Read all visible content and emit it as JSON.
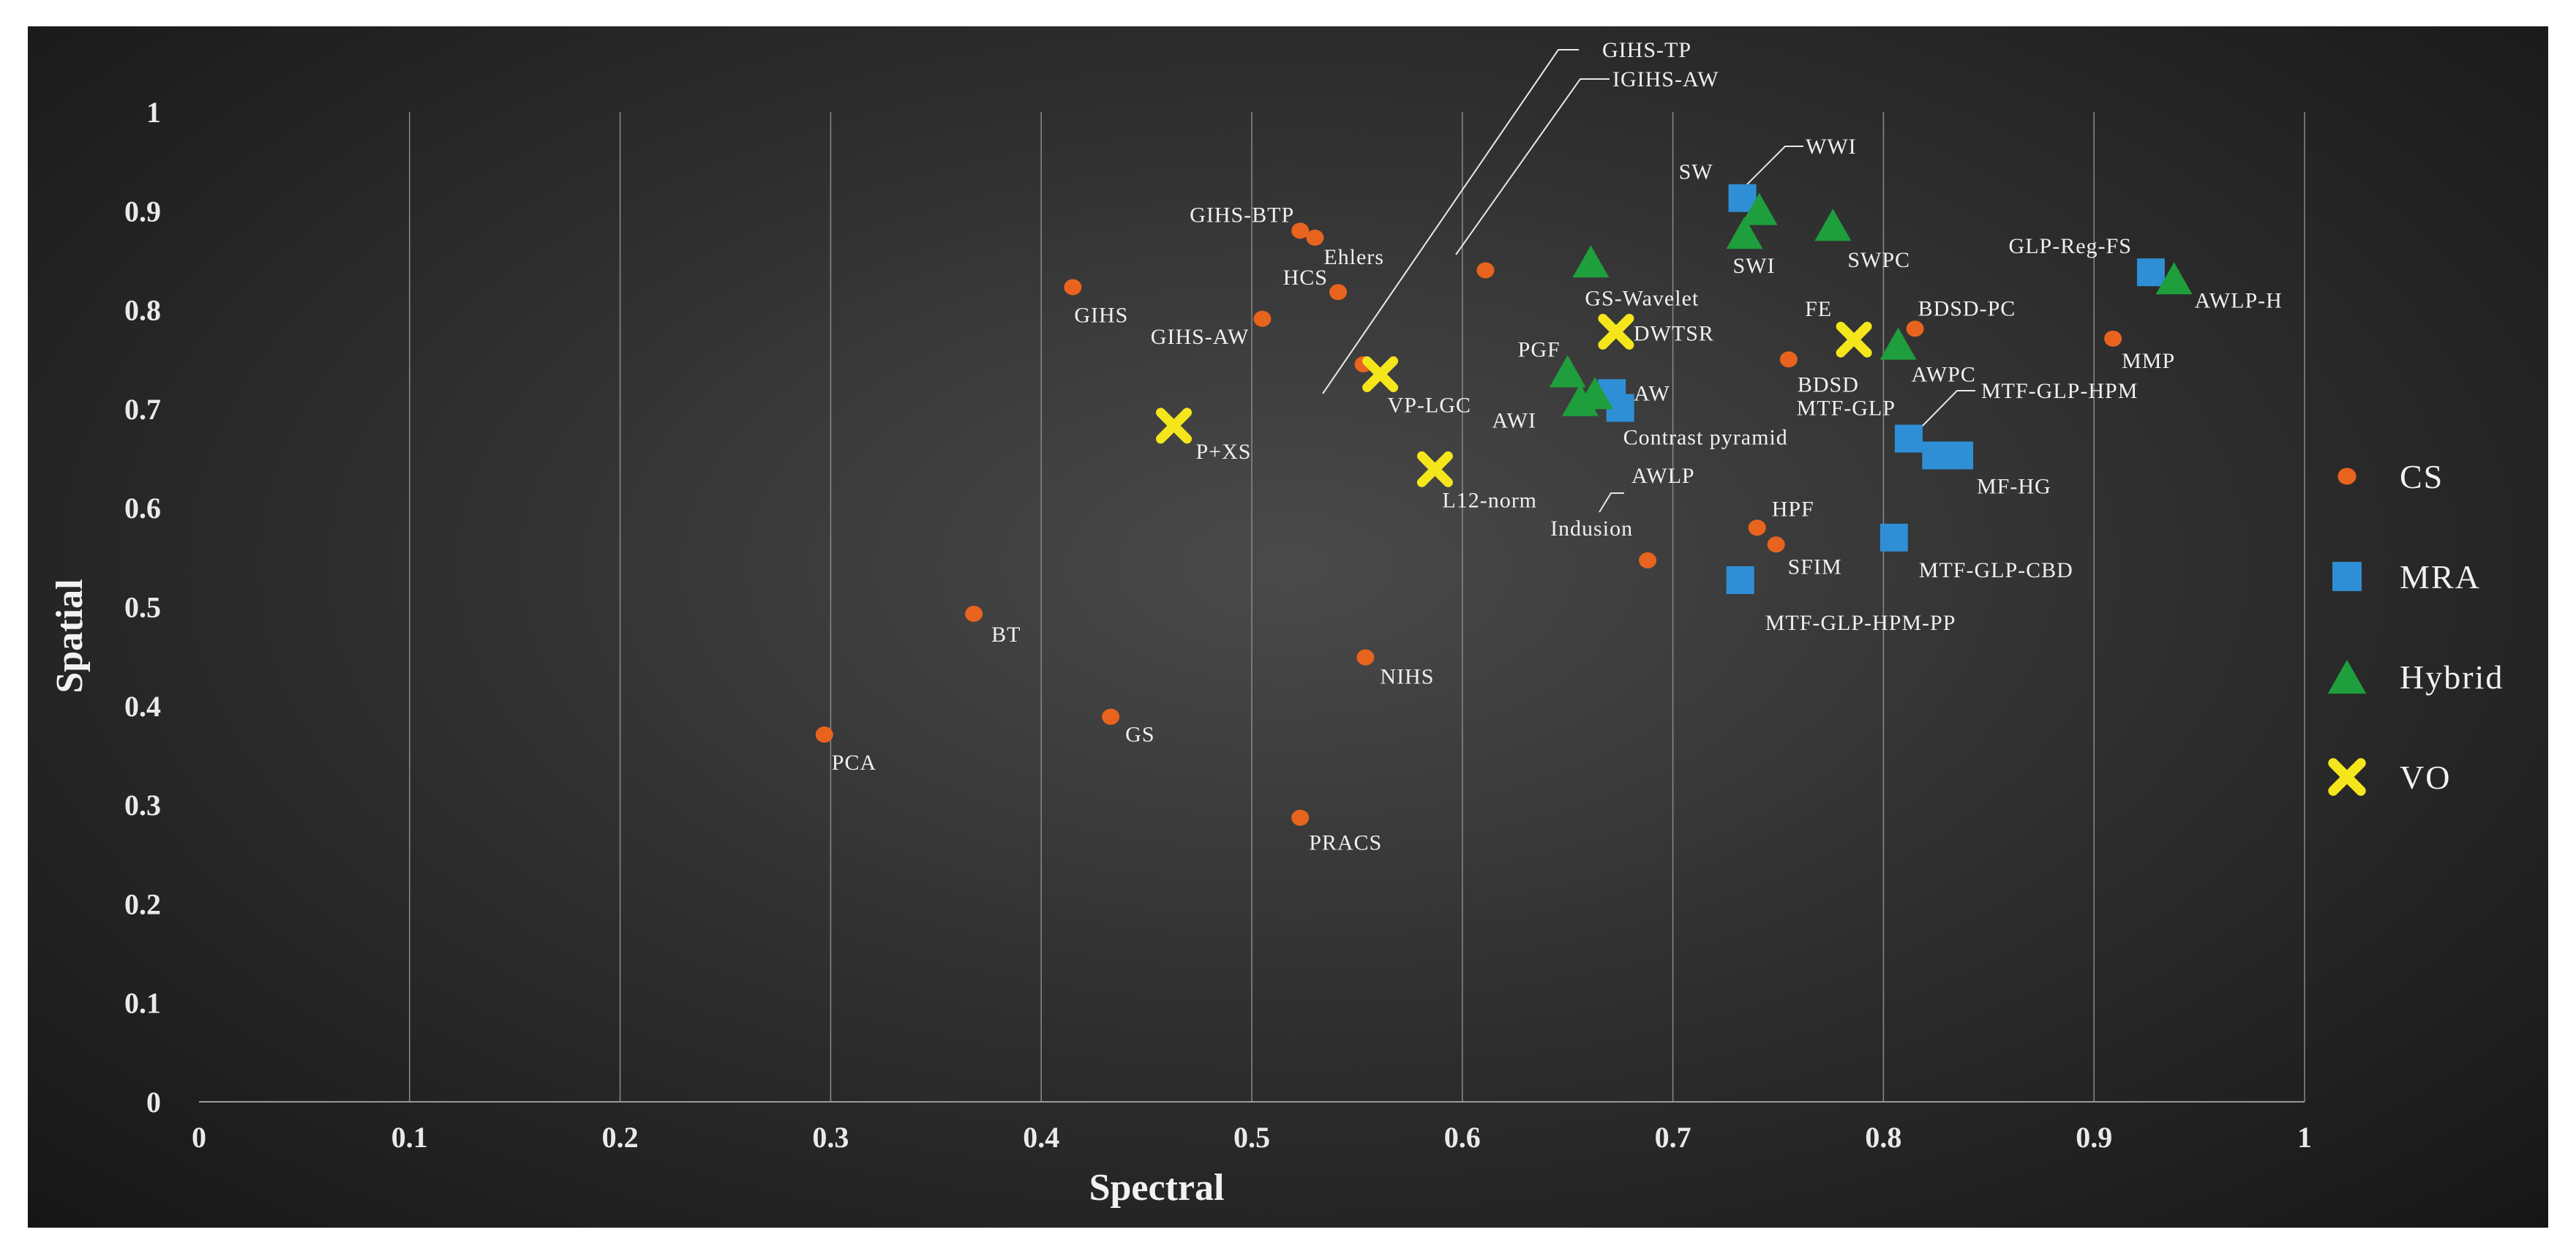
{
  "chart_data": {
    "type": "scatter",
    "title": "",
    "xlabel": "Spectral",
    "ylabel": "Spatial",
    "xlim": [
      0,
      1
    ],
    "ylim": [
      0,
      1
    ],
    "xticks": [
      "0",
      "0.1",
      "0.2",
      "0.3",
      "0.4",
      "0.5",
      "0.6",
      "0.7",
      "0.8",
      "0.9",
      "1"
    ],
    "yticks": [
      "0",
      "0.1",
      "0.2",
      "0.3",
      "0.4",
      "0.5",
      "0.6",
      "0.7",
      "0.8",
      "0.9",
      "1"
    ],
    "grid": "vertical",
    "legend_position": "right",
    "series": [
      {
        "name": "CS",
        "marker": "circle",
        "color": "#e8641e",
        "points": [
          {
            "x": 0.297,
            "y": 0.371,
            "label": "PCA"
          },
          {
            "x": 0.368,
            "y": 0.493,
            "label": "BT"
          },
          {
            "x": 0.433,
            "y": 0.389,
            "label": "GS"
          },
          {
            "x": 0.415,
            "y": 0.823,
            "label": "GIHS"
          },
          {
            "x": 0.505,
            "y": 0.791,
            "label": "GIHS-AW"
          },
          {
            "x": 0.523,
            "y": 0.88,
            "label": "GIHS-BTP"
          },
          {
            "x": 0.53,
            "y": 0.873,
            "label": "Ehlers"
          },
          {
            "x": 0.541,
            "y": 0.818,
            "label": "HCS"
          },
          {
            "x": 0.553,
            "y": 0.745,
            "label": "GIHS-TP"
          },
          {
            "x": 0.611,
            "y": 0.84,
            "label": "IGIHS-AW"
          },
          {
            "x": 0.554,
            "y": 0.449,
            "label": "NIHS"
          },
          {
            "x": 0.523,
            "y": 0.287,
            "label": "PRACS"
          },
          {
            "x": 0.688,
            "y": 0.547,
            "label": "Indusion"
          },
          {
            "x": 0.74,
            "y": 0.58,
            "label": "HPF"
          },
          {
            "x": 0.749,
            "y": 0.563,
            "label": "SFIM"
          },
          {
            "x": 0.755,
            "y": 0.75,
            "label": "BDSD"
          },
          {
            "x": 0.815,
            "y": 0.781,
            "label": "BDSD-PC"
          },
          {
            "x": 0.909,
            "y": 0.771,
            "label": "MMP"
          }
        ]
      },
      {
        "name": "MRA",
        "marker": "square",
        "color": "#2f8fd6",
        "points": [
          {
            "x": 0.733,
            "y": 0.913,
            "label": "SW"
          },
          {
            "x": 0.927,
            "y": 0.838,
            "label": "GLP-Reg-FS"
          },
          {
            "x": 0.671,
            "y": 0.716,
            "label": "AW"
          },
          {
            "x": 0.675,
            "y": 0.701,
            "label": "Contrast pyramid"
          },
          {
            "x": 0.812,
            "y": 0.67,
            "label": "MTF-GLP"
          },
          {
            "x": 0.825,
            "y": 0.653,
            "label": "MTF-GLP-HPM"
          },
          {
            "x": 0.836,
            "y": 0.653,
            "label": "MF-HG"
          },
          {
            "x": 0.805,
            "y": 0.57,
            "label": "MTF-GLP-CBD"
          },
          {
            "x": 0.732,
            "y": 0.527,
            "label": "MTF-GLP-HPM-PP"
          }
        ]
      },
      {
        "name": "Hybrid",
        "marker": "triangle",
        "color": "#1e9e3c",
        "points": [
          {
            "x": 0.741,
            "y": 0.902,
            "label": "WWI"
          },
          {
            "x": 0.734,
            "y": 0.878,
            "label": "SWI"
          },
          {
            "x": 0.776,
            "y": 0.886,
            "label": "SWPC"
          },
          {
            "x": 0.661,
            "y": 0.849,
            "label": "GS-Wavelet"
          },
          {
            "x": 0.938,
            "y": 0.832,
            "label": "AWLP-H"
          },
          {
            "x": 0.807,
            "y": 0.766,
            "label": "AWPC"
          },
          {
            "x": 0.65,
            "y": 0.738,
            "label": "PGF"
          },
          {
            "x": 0.663,
            "y": 0.716,
            "label": "AWLP"
          },
          {
            "x": 0.656,
            "y": 0.709,
            "label": "AWI"
          }
        ]
      },
      {
        "name": "VO",
        "marker": "x",
        "color": "#f5e61c",
        "points": [
          {
            "x": 0.673,
            "y": 0.778,
            "label": "DWTSR"
          },
          {
            "x": 0.786,
            "y": 0.77,
            "label": "FE"
          },
          {
            "x": 0.561,
            "y": 0.735,
            "label": "VP-LGC"
          },
          {
            "x": 0.463,
            "y": 0.683,
            "label": "P+XS"
          },
          {
            "x": 0.587,
            "y": 0.639,
            "label": "L12-norm"
          }
        ]
      }
    ]
  }
}
